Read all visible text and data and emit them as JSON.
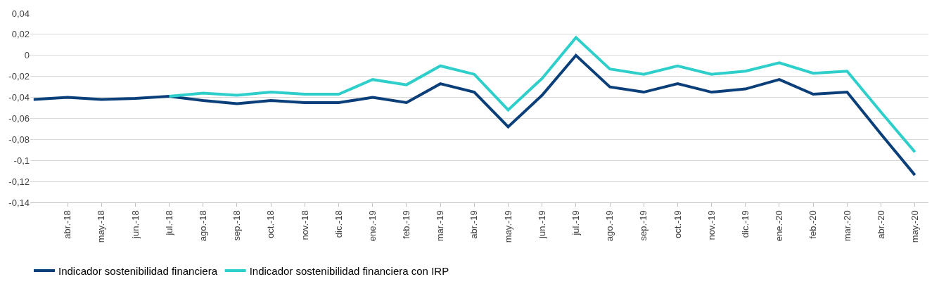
{
  "chart_data": {
    "type": "line",
    "categories": [
      null,
      "abr.-18",
      "may.-18",
      "jun.-18",
      "jul.-18",
      "ago.-18",
      "sep.-18",
      "oct.-18",
      "nov.-18",
      "dic.-18",
      "ene.-19",
      "feb.-19",
      "mar.-19",
      "abr.-19",
      "may.-19",
      "jun.-19",
      "jul.-19",
      "ago.-19",
      "sep.-19",
      "oct.-19",
      "nov.-19",
      "dic.-19",
      "ene.-20",
      "feb.-20",
      "mar.-20",
      "abr.-20",
      "may.-20"
    ],
    "series": [
      {
        "name": "Indicador sostenibilidad financiera",
        "color": "#0b3f7a",
        "values": [
          -0.042,
          -0.04,
          -0.042,
          -0.041,
          -0.039,
          -0.043,
          -0.046,
          -0.043,
          -0.045,
          -0.045,
          -0.04,
          -0.045,
          -0.027,
          -0.035,
          -0.068,
          -0.038,
          0,
          -0.03,
          -0.035,
          -0.027,
          -0.035,
          -0.032,
          -0.023,
          -0.037,
          -0.035,
          -0.075,
          -0.114
        ]
      },
      {
        "name": "Indicador sostenibilidad financiera con IRP",
        "color": "#2ecfcb",
        "values": [
          null,
          null,
          null,
          null,
          -0.039,
          -0.036,
          -0.038,
          -0.035,
          -0.037,
          -0.037,
          -0.023,
          -0.028,
          -0.01,
          -0.018,
          -0.052,
          -0.022,
          0.017,
          -0.013,
          -0.018,
          -0.01,
          -0.018,
          -0.015,
          -0.007,
          -0.017,
          -0.015,
          -0.054,
          -0.092
        ]
      }
    ],
    "ylim": [
      -0.14,
      0.04
    ],
    "yticks": [
      {
        "value": 0.04,
        "label": "0,04"
      },
      {
        "value": 0.02,
        "label": "0,02"
      },
      0,
      {
        "value": -0.02,
        "label": "-0,02"
      },
      {
        "value": -0.04,
        "label": "-0,04"
      },
      {
        "value": -0.06,
        "label": "-0,06"
      },
      {
        "value": -0.08,
        "label": "-0,08"
      },
      {
        "value": -0.1,
        "label": "-0,1"
      },
      {
        "value": -0.12,
        "label": "-0,12"
      },
      {
        "value": -0.14,
        "label": "-0,14"
      }
    ],
    "grid": "y",
    "legend": "bottom left",
    "marker": "none",
    "line_style": "solid"
  }
}
